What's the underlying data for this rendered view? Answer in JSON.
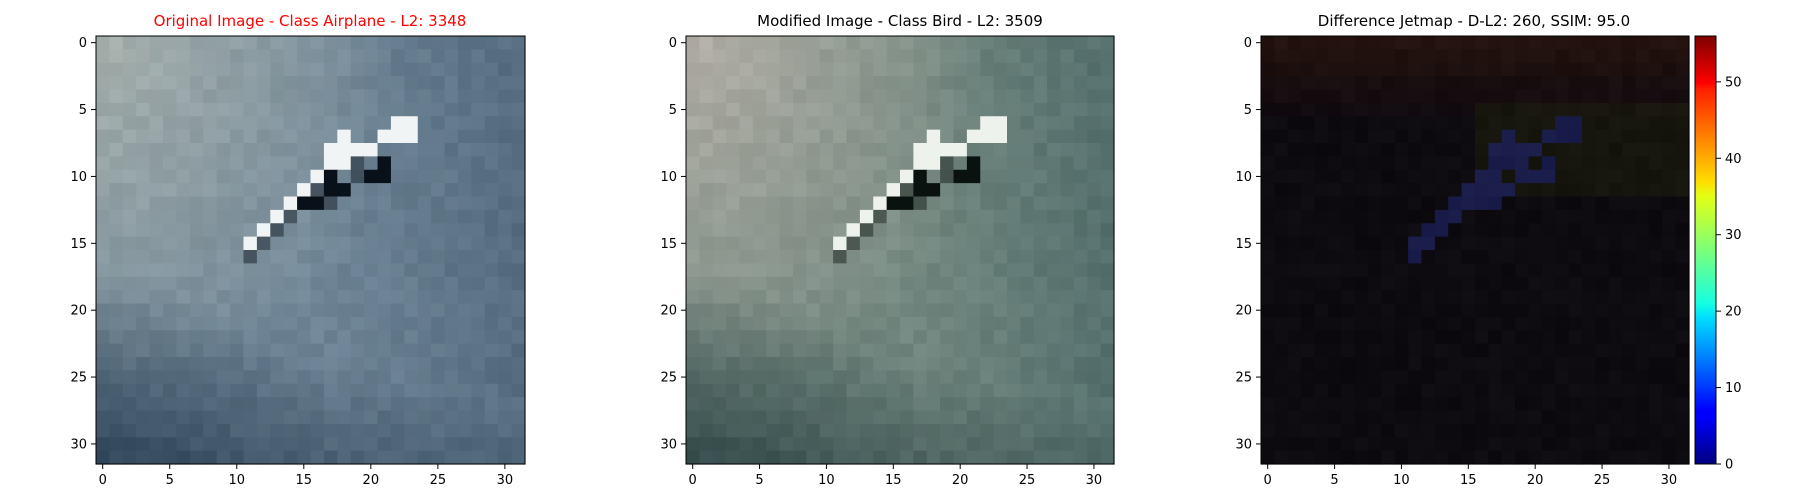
{
  "colors": {
    "title_highlight": "#ff0000",
    "title_default": "#000000",
    "axes": "#000000",
    "background": "#ffffff"
  },
  "chart_data": [
    {
      "type": "heatmap",
      "title": "Original Image - Class Airplane - L2: 3348",
      "title_color": "#ff0000",
      "image_size": [
        32,
        32
      ],
      "x_ticks": [
        0,
        5,
        10,
        15,
        20,
        25,
        30
      ],
      "y_ticks": [
        0,
        5,
        10,
        15,
        20,
        25,
        30
      ],
      "xlim": [
        -0.5,
        31.5
      ],
      "ylim": [
        31.5,
        -0.5
      ],
      "grid": false,
      "palette": {
        "sky_top_left": "#a7b1ad",
        "sky_mid": "#6f8596",
        "sky_right": "#4d6578",
        "sky_bottom_left": "#1f3447",
        "aircraft_bright": "#f0f4f4",
        "aircraft_dark": "#08101a"
      }
    },
    {
      "type": "heatmap",
      "title": "Modified Image - Class Bird - L2: 3509",
      "title_color": "#000000",
      "image_size": [
        32,
        32
      ],
      "x_ticks": [
        0,
        5,
        10,
        15,
        20,
        25,
        30
      ],
      "y_ticks": [
        0,
        5,
        10,
        15,
        20,
        25,
        30
      ],
      "xlim": [
        -0.5,
        31.5
      ],
      "ylim": [
        31.5,
        -0.5
      ],
      "grid": false,
      "palette": {
        "sky_top_left": "#b3afa6",
        "sky_mid": "#72877f",
        "sky_right": "#4b6767",
        "sky_bottom_left": "#233a3c",
        "aircraft_bright": "#eef2ec",
        "aircraft_dark": "#0a120f"
      }
    },
    {
      "type": "heatmap",
      "title": "Difference Jetmap - D-L2: 260, SSIM: 95.0",
      "title_color": "#000000",
      "image_size": [
        32,
        32
      ],
      "x_ticks": [
        0,
        5,
        10,
        15,
        20,
        25,
        30
      ],
      "y_ticks": [
        0,
        5,
        10,
        15,
        20,
        25,
        30
      ],
      "xlim": [
        -0.5,
        31.5
      ],
      "ylim": [
        31.5,
        -0.5
      ],
      "grid": false,
      "colorbar": {
        "colormap": "jet",
        "range": [
          0,
          56
        ],
        "ticks": [
          0,
          10,
          20,
          30,
          40,
          50
        ]
      },
      "palette": {
        "background": "#0d0a10",
        "warm_top": "#24120e",
        "olive": "#1b1c0c",
        "streak": "#1a1d4a"
      }
    }
  ]
}
